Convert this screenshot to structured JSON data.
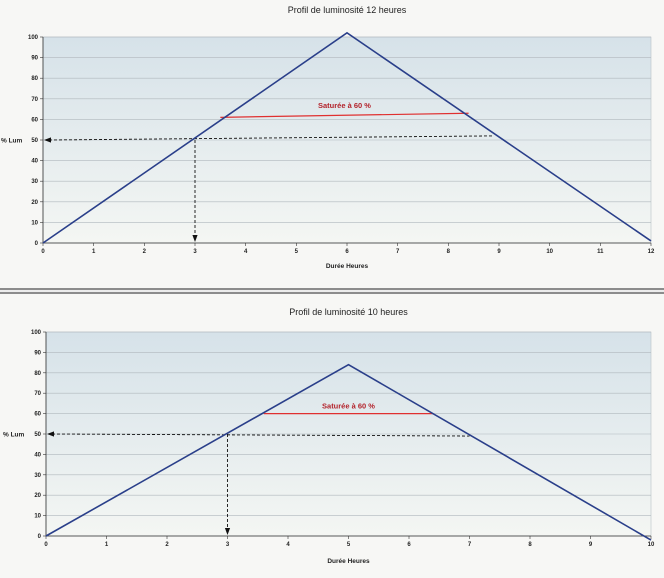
{
  "chart_data": [
    {
      "type": "line",
      "title": "Profil de luminosité 12 heures",
      "xlabel": "Durée Heures",
      "ylabel": "% Lum",
      "xlim": [
        0,
        12
      ],
      "ylim": [
        0,
        100
      ],
      "xticks": [
        0,
        1,
        2,
        3,
        4,
        5,
        6,
        7,
        8,
        9,
        10,
        11,
        12
      ],
      "yticks": [
        0,
        10,
        20,
        30,
        40,
        50,
        60,
        70,
        80,
        90,
        100
      ],
      "grid": true,
      "series": [
        {
          "points": [
            [
              0,
              0
            ],
            [
              6,
              102
            ],
            [
              12,
              1
            ]
          ],
          "color": "#2a3f8a"
        }
      ],
      "saturation": {
        "label": "Saturée à 60 %",
        "x1": 3.5,
        "y1": 61,
        "x2": 8.4,
        "y2": 63,
        "color": "#e03030"
      },
      "guide": {
        "x": 3,
        "y": 50,
        "x_end": 8.9,
        "y_end": 52
      }
    },
    {
      "type": "line",
      "title": "Profil de luminosité 10 heures",
      "xlabel": "Durée Heures",
      "ylabel": "% Lum",
      "xlim": [
        0,
        10
      ],
      "ylim": [
        0,
        100
      ],
      "xticks": [
        0,
        1,
        2,
        3,
        4,
        5,
        6,
        7,
        8,
        9,
        10
      ],
      "yticks": [
        0,
        10,
        20,
        30,
        40,
        50,
        60,
        70,
        80,
        90,
        100
      ],
      "grid": true,
      "series": [
        {
          "points": [
            [
              0,
              0
            ],
            [
              5,
              84
            ],
            [
              10,
              -2
            ]
          ],
          "color": "#2a3f8a"
        }
      ],
      "saturation": {
        "label": "Saturée à 60 %",
        "x1": 3.6,
        "y1": 60,
        "x2": 6.4,
        "y2": 60,
        "color": "#e03030"
      },
      "guide": {
        "x": 3,
        "y": 50,
        "x_end": 7,
        "y_end": 49
      }
    }
  ]
}
